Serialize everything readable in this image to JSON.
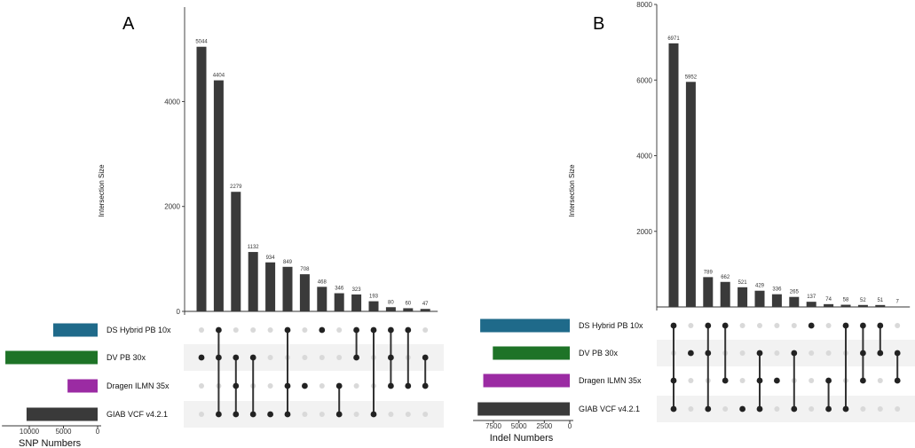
{
  "chart_data": [
    {
      "panel": "A",
      "type": "bar",
      "ylabel": "Intersection Size",
      "ylim": [
        0,
        5800
      ],
      "yticks": [
        0,
        2000,
        4000
      ],
      "values": [
        5044,
        4404,
        2279,
        1132,
        934,
        849,
        708,
        468,
        346,
        323,
        193,
        80,
        60,
        47
      ],
      "sets": [
        "DS Hybrid PB 10x",
        "DV PB 30x",
        "Dragen ILMN 35x",
        "GIAB VCF v4.2.1"
      ],
      "memberships": [
        [
          1
        ],
        [
          0,
          1,
          3
        ],
        [
          1,
          2,
          3
        ],
        [
          1,
          3
        ],
        [
          3
        ],
        [
          0,
          2,
          3
        ],
        [
          2
        ],
        [
          0
        ],
        [
          2,
          3
        ],
        [
          0,
          1
        ],
        [
          0,
          3
        ],
        [
          0,
          1,
          2
        ],
        [
          0,
          2
        ],
        [
          1,
          2
        ]
      ],
      "set_sizes": {
        "xlabel": "SNP Numbers",
        "xticks": [
          10000,
          5000,
          0
        ],
        "xlim": [
          14000,
          0
        ],
        "values": [
          6500,
          13500,
          4400,
          10400
        ]
      }
    },
    {
      "panel": "B",
      "type": "bar",
      "ylabel": "Intersection Size",
      "ylim": [
        0,
        8000
      ],
      "yticks": [
        2000,
        4000,
        6000,
        8000
      ],
      "values": [
        6971,
        5952,
        789,
        662,
        521,
        429,
        336,
        265,
        137,
        74,
        58,
        52,
        51,
        7
      ],
      "sets": [
        "DS Hybrid PB 10x",
        "DV PB 30x",
        "Dragen ILMN 35x",
        "GIAB VCF v4.2.1"
      ],
      "memberships": [
        [
          0,
          2,
          3
        ],
        [
          1
        ],
        [
          0,
          1,
          3
        ],
        [
          0,
          2
        ],
        [
          3
        ],
        [
          1,
          2,
          3
        ],
        [
          2
        ],
        [
          1,
          3
        ],
        [
          0
        ],
        [
          2,
          3
        ],
        [
          0,
          3
        ],
        [
          0,
          1,
          2
        ],
        [
          0,
          1
        ],
        [
          1,
          2
        ]
      ],
      "set_sizes": {
        "xlabel": "Indel Numbers",
        "xticks": [
          7500,
          5000,
          2500,
          0
        ],
        "xlim": [
          9500,
          0
        ],
        "values": [
          8800,
          7560,
          8500,
          9050
        ]
      }
    }
  ],
  "colors": {
    "bar": "#3a3a3a",
    "sets": [
      "#1f6a8a",
      "#1e7327",
      "#9b2ba3",
      "#3a3a3a"
    ],
    "dot_off": "#d9d9d9",
    "stripe": "#f2f2f2"
  }
}
